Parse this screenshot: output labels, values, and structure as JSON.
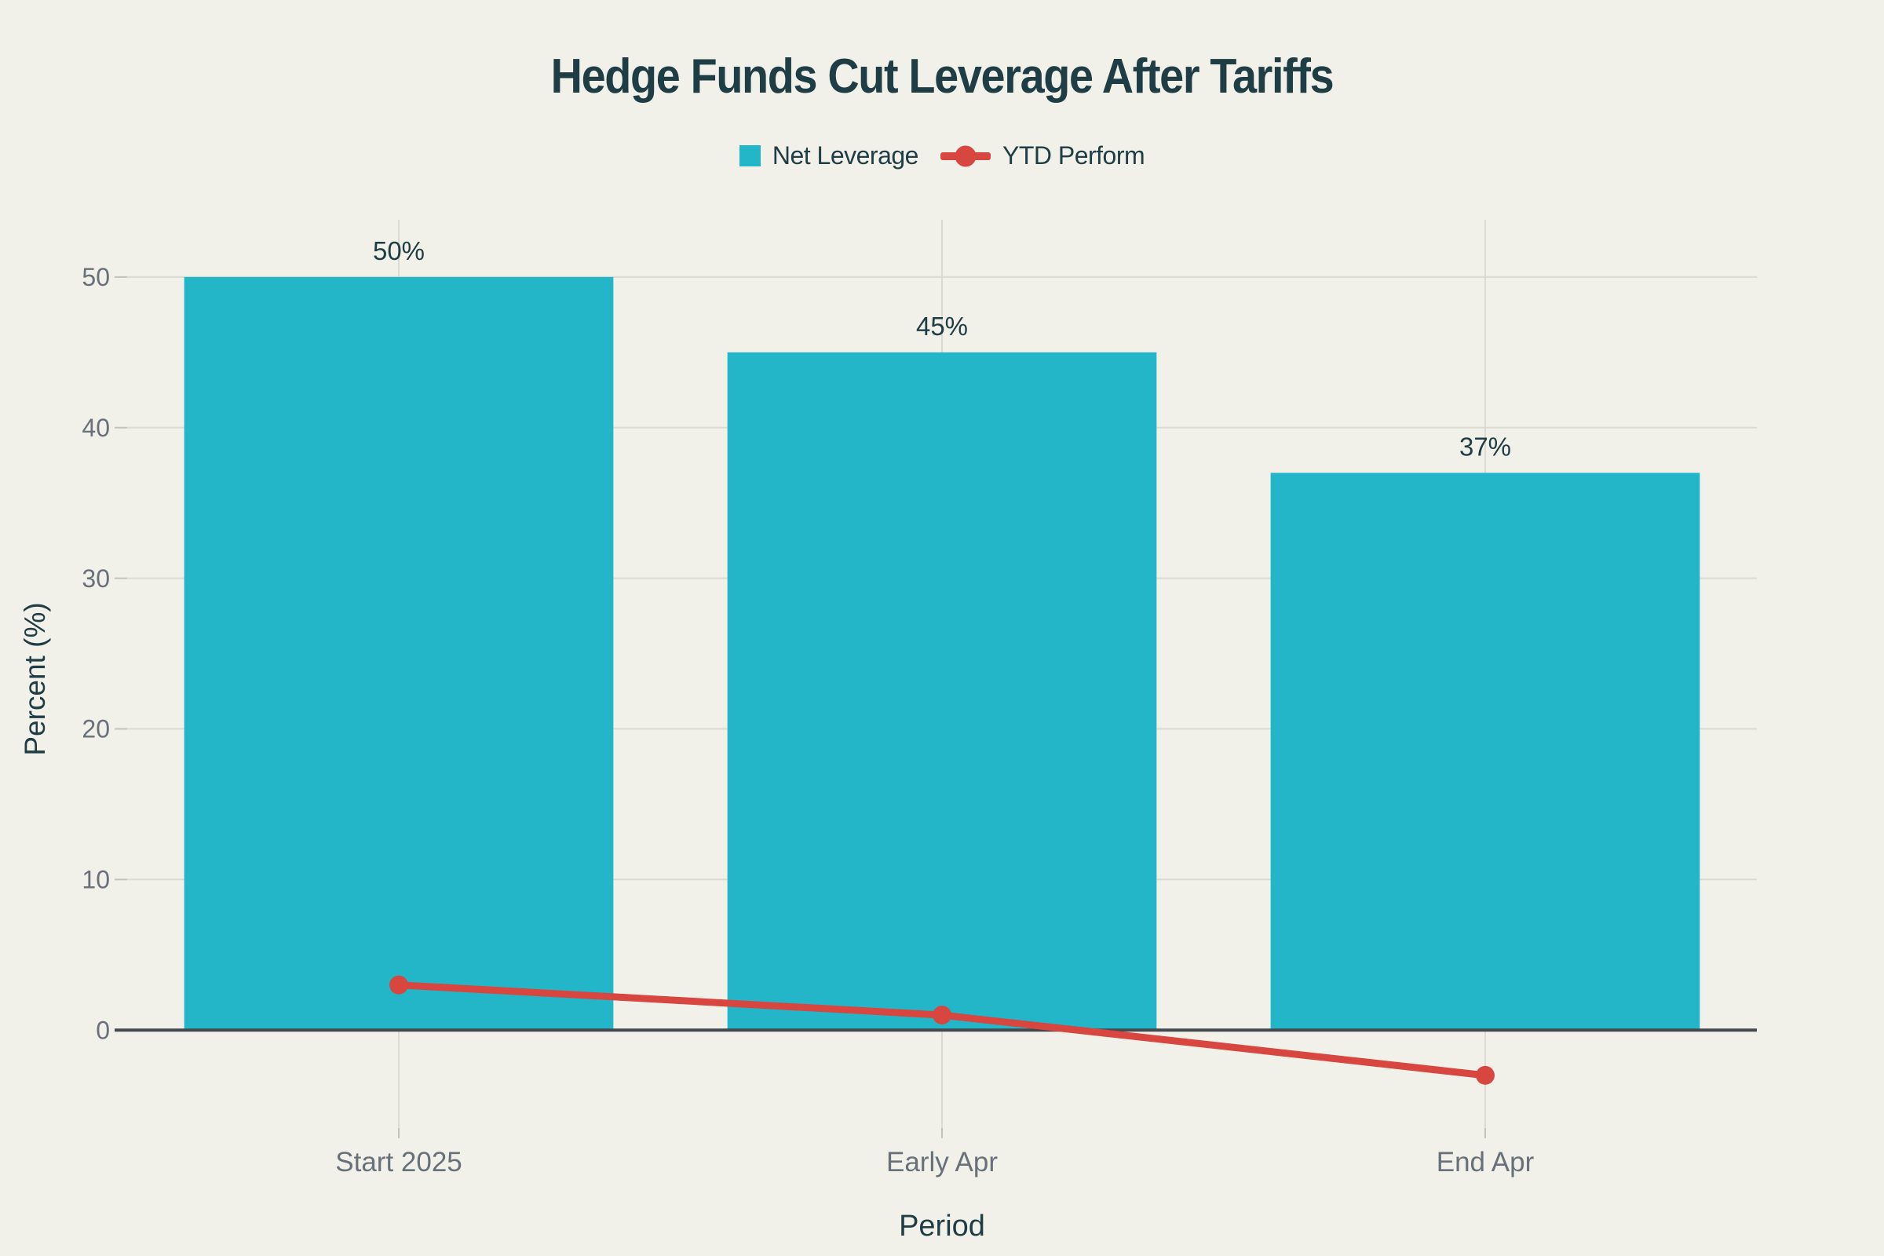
{
  "title": "Hedge Funds Cut Leverage After Tariffs",
  "legend": {
    "items": [
      {
        "label": "Net Leverage",
        "marker": "square",
        "color": "#23b5c8"
      },
      {
        "label": "YTD Perform",
        "marker": "line-dot",
        "color": "#d7463f"
      }
    ]
  },
  "chart_data": {
    "type": "bar+line",
    "title": "Hedge Funds Cut Leverage After Tariffs",
    "categories": [
      "Start 2025",
      "Early Apr",
      "End Apr"
    ],
    "series": [
      {
        "name": "Net Leverage",
        "type": "bar",
        "values": [
          50,
          45,
          37
        ],
        "data_labels": [
          "50%",
          "45%",
          "37%"
        ],
        "color": "#23b5c8"
      },
      {
        "name": "YTD Perform",
        "type": "line",
        "values": [
          3,
          1,
          -3
        ],
        "color": "#d7463f"
      }
    ],
    "xlabel": "Period",
    "ylabel": "Percent (%)",
    "ylim": [
      -6.5,
      53.8
    ],
    "yticks": [
      0,
      10,
      20,
      30,
      40,
      50
    ],
    "grid": true,
    "legend_position": "top-center"
  },
  "colors": {
    "background": "#f1f0e9",
    "bar": "#23b5c8",
    "line": "#d7463f",
    "dark_text": "#1e3d44",
    "tick_text": "#687079",
    "gridline": "#dcdbd2",
    "tick_mark": "#c3c3ba",
    "zero_line": "#44494e"
  }
}
